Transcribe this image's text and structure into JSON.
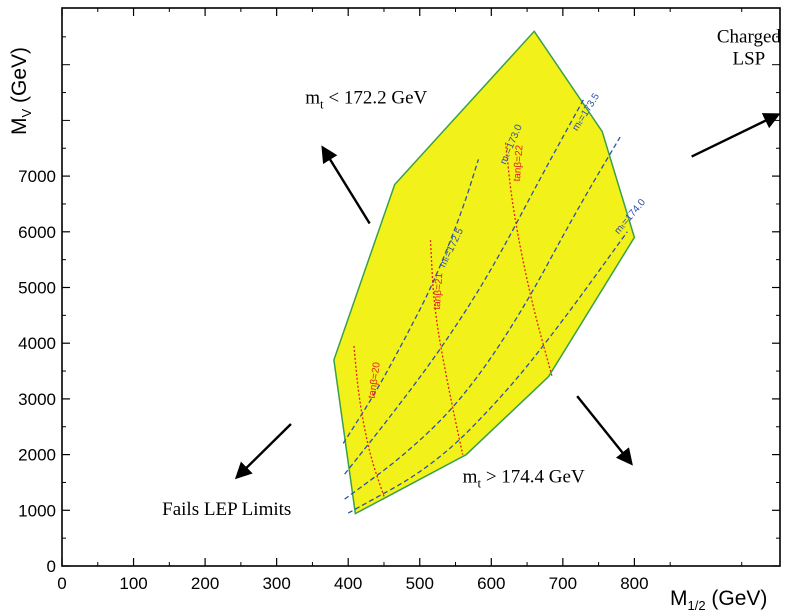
{
  "chart_data": {
    "type": "line",
    "xlabel_main": "M",
    "xlabel_sub": "1/2",
    "xlabel_unit": " (GeV)",
    "ylabel_main": "M",
    "ylabel_sub": "V",
    "ylabel_unit": " (GeV)",
    "xlim": [
      0,
      1000
    ],
    "ylim": [
      0,
      10000
    ],
    "x_ticks": [
      0,
      100,
      200,
      300,
      400,
      500,
      600,
      700,
      800
    ],
    "y_ticks": [
      0,
      1000,
      2000,
      3000,
      4000,
      5000,
      6000,
      7000
    ],
    "colors": {
      "fill": "#f2f21a",
      "border": "#3aa04a",
      "mt_contour": "#2f4fa8",
      "tanb_contour": "#e02020",
      "arrow": "#000000"
    },
    "allowed_region": {
      "x": [
        380,
        410,
        565,
        680,
        800,
        755,
        660,
        465,
        380
      ],
      "y": [
        3700,
        940,
        2000,
        3400,
        5900,
        7800,
        9600,
        6850,
        3700
      ]
    },
    "mt_contours": [
      {
        "label": "mₜ=172.5",
        "x": [
          393,
          440,
          480,
          520,
          560,
          582
        ],
        "y": [
          2200,
          3150,
          4100,
          5100,
          6400,
          7300
        ],
        "label_at": [
          535,
          5350
        ],
        "label_angle": -64
      },
      {
        "label": "mₜ=173.0",
        "x": [
          395,
          460,
          530,
          600,
          670,
          730
        ],
        "y": [
          1650,
          2700,
          3900,
          5300,
          7000,
          8400
        ],
        "label_at": [
          620,
          7200
        ],
        "label_angle": -67
      },
      {
        "label": "mₜ=173.5",
        "x": [
          395,
          480,
          560,
          640,
          720,
          780
        ],
        "y": [
          1200,
          2000,
          3000,
          4500,
          6400,
          7700
        ],
        "label_at": [
          720,
          7800
        ],
        "label_angle": -58
      },
      {
        "label": "mₜ=174.0",
        "x": [
          400,
          520,
          620,
          700,
          790
        ],
        "y": [
          950,
          1800,
          3100,
          4400,
          6000
        ],
        "label_at": [
          778,
          5950
        ],
        "label_angle": -50
      }
    ],
    "tanb_contours": [
      {
        "label": "tanβ=20",
        "x": [
          408,
          415,
          430,
          450
        ],
        "y": [
          3950,
          3000,
          2000,
          1250
        ],
        "label_at": [
          437,
          3000
        ],
        "label_angle": -82
      },
      {
        "label": "tanβ=21",
        "x": [
          515,
          520,
          540,
          560
        ],
        "y": [
          5850,
          4600,
          3200,
          2000
        ],
        "label_at": [
          528,
          4600
        ],
        "label_angle": -86
      },
      {
        "label": "tanβ=22",
        "x": [
          620,
          630,
          655,
          685
        ],
        "y": [
          7600,
          6400,
          4800,
          3400
        ],
        "label_at": [
          640,
          6900
        ],
        "label_angle": -86
      }
    ],
    "annotations": [
      {
        "name": "mt-low",
        "main": "m",
        "sub": "t",
        "rest": " < 172.2 GeV",
        "at": [
          340,
          8300
        ],
        "arrow_from": [
          430,
          6150
        ],
        "arrow_to": [
          365,
          7500
        ]
      },
      {
        "name": "mt-high",
        "main": "m",
        "sub": "t",
        "rest": " > 174.4 GeV",
        "at": [
          560,
          1500
        ],
        "arrow_from": [
          720,
          3050
        ],
        "arrow_to": [
          795,
          1850
        ]
      },
      {
        "name": "charged-lsp",
        "lines": [
          "Charged",
          "LSP"
        ],
        "at": [
          960,
          9400
        ],
        "arrow_from": [
          880,
          7350
        ],
        "arrow_to": [
          1000,
          8100
        ]
      },
      {
        "name": "fails-lep",
        "lines": [
          "Fails LEP Limits"
        ],
        "at": [
          140,
          920
        ],
        "arrow_from": [
          320,
          2550
        ],
        "arrow_to": [
          245,
          1600
        ]
      }
    ]
  }
}
